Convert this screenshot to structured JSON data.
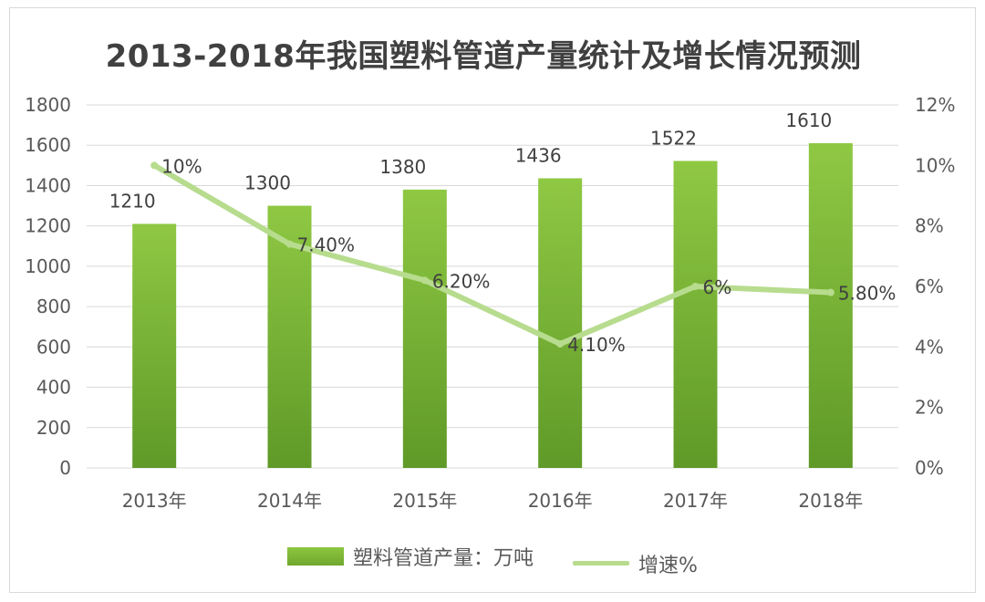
{
  "chart_data": {
    "type": "bar",
    "title": "2013-2018年我国塑料管道产量统计及增长情况预测",
    "categories": [
      "2013年",
      "2014年",
      "2015年",
      "2016年",
      "2017年",
      "2018年"
    ],
    "series": [
      {
        "name": "塑料管道产量：万吨",
        "type": "bar",
        "axis": "left",
        "values": [
          1210,
          1300,
          1380,
          1436,
          1522,
          1610
        ],
        "labels": [
          "1210",
          "1300",
          "1380",
          "1436",
          "1522",
          "1610"
        ],
        "color": "#7ab536"
      },
      {
        "name": "增速%",
        "type": "line",
        "axis": "right",
        "values": [
          10,
          7.4,
          6.2,
          4.1,
          6,
          5.8
        ],
        "labels": [
          "10%",
          "7.40%",
          "6.20%",
          "4.10%",
          "6%",
          "5.80%"
        ],
        "color": "#b7dc8e"
      }
    ],
    "ylim_left": [
      0,
      1800
    ],
    "yticks_left": [
      "0",
      "200",
      "400",
      "600",
      "800",
      "1000",
      "1200",
      "1400",
      "1600",
      "1800"
    ],
    "ylim_right": [
      0,
      12
    ],
    "yticks_right": [
      "0%",
      "2%",
      "4%",
      "6%",
      "8%",
      "10%",
      "12%"
    ],
    "grid": true,
    "legend_position": "bottom"
  }
}
